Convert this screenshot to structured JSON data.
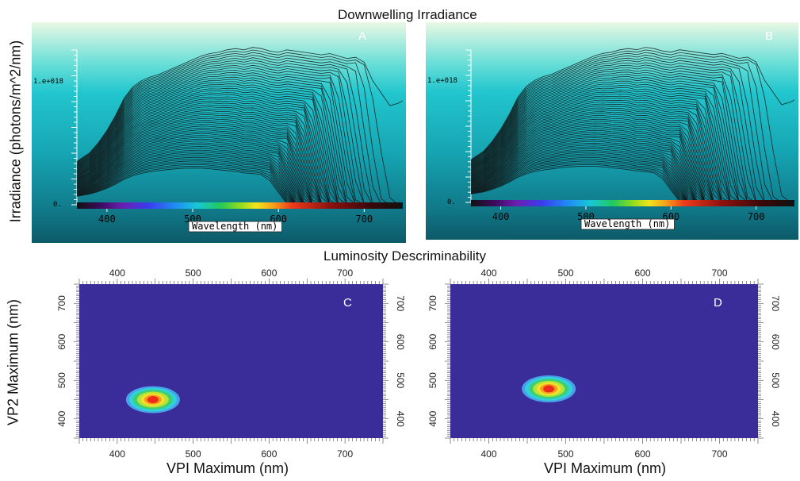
{
  "titles": {
    "top": "Downwelling Irradiance",
    "bottom": "Luminosity Descriminability"
  },
  "irradiance_ylabel": "Irradiance (photons/m^2/nm)",
  "colors": {
    "panel_bg_top": "#e8f7e6",
    "panel_bg_mid": "#22c5cd",
    "panel_bg_bottom": "#0f5e6c",
    "curve": "#111111",
    "heatmap_bg": "#3a2d9a"
  },
  "chart_data": [
    {
      "type": "line",
      "panel": "A",
      "xlabel": "Wavelength (nm)",
      "x_ticks": [
        "400",
        "500",
        "600",
        "700"
      ],
      "y_ticks": [
        "0.",
        "1.e+018"
      ],
      "xlim": [
        365,
        745
      ],
      "top_curve": {
        "x": [
          365,
          380,
          390,
          400,
          410,
          420,
          430,
          440,
          450,
          460,
          470,
          480,
          490,
          500,
          510,
          520,
          530,
          540,
          550,
          560,
          570,
          580,
          590,
          600,
          610,
          620,
          630,
          640,
          650,
          660,
          670,
          680,
          690,
          700,
          710,
          720,
          730,
          740,
          745
        ],
        "y": [
          0.35,
          0.42,
          0.5,
          0.6,
          0.72,
          0.86,
          0.95,
          1.0,
          1.03,
          1.05,
          1.08,
          1.11,
          1.14,
          1.17,
          1.2,
          1.22,
          1.23,
          1.25,
          1.26,
          1.25,
          1.27,
          1.26,
          1.24,
          1.23,
          1.25,
          1.24,
          1.23,
          1.22,
          1.21,
          1.22,
          1.2,
          1.18,
          1.19,
          1.15,
          1.0,
          0.9,
          0.8,
          0.82,
          0.84
        ]
      },
      "curve_count": 60
    },
    {
      "type": "line",
      "panel": "B",
      "xlabel": "Wavelength (nm)",
      "x_ticks": [
        "400",
        "500",
        "600",
        "700"
      ],
      "y_ticks": [
        "0.",
        "1.e+018"
      ],
      "xlim": [
        365,
        745
      ],
      "top_curve": {
        "x": [
          365,
          380,
          390,
          400,
          410,
          420,
          430,
          440,
          450,
          460,
          470,
          480,
          490,
          500,
          510,
          520,
          530,
          540,
          550,
          560,
          570,
          580,
          590,
          600,
          610,
          620,
          630,
          640,
          650,
          660,
          670,
          680,
          690,
          700,
          710,
          720,
          730,
          740,
          745
        ],
        "y": [
          0.35,
          0.42,
          0.5,
          0.6,
          0.72,
          0.86,
          0.95,
          1.0,
          1.03,
          1.05,
          1.08,
          1.11,
          1.14,
          1.17,
          1.2,
          1.22,
          1.23,
          1.25,
          1.26,
          1.25,
          1.27,
          1.26,
          1.24,
          1.23,
          1.25,
          1.24,
          1.23,
          1.22,
          1.21,
          1.22,
          1.2,
          1.18,
          1.19,
          1.15,
          1.0,
          0.9,
          0.8,
          0.82,
          0.84
        ]
      },
      "curve_count": 60
    },
    {
      "type": "heatmap",
      "panel": "C",
      "xlabel": "VPI Maximum (nm)",
      "ylabel": "VP2 Maximum (nm)",
      "x_ticks": [
        "400",
        "500",
        "600",
        "700"
      ],
      "y_ticks": [
        "400",
        "500",
        "600",
        "700"
      ],
      "xlim": [
        350,
        750
      ],
      "ylim": [
        350,
        750
      ],
      "peak": {
        "x": 447,
        "y": 450
      }
    },
    {
      "type": "heatmap",
      "panel": "D",
      "xlabel": "VPI Maximum (nm)",
      "ylabel": "VP2 Maximum (nm)",
      "x_ticks": [
        "400",
        "500",
        "600",
        "700"
      ],
      "y_ticks": [
        "400",
        "500",
        "600",
        "700"
      ],
      "xlim": [
        350,
        750
      ],
      "ylim": [
        350,
        750
      ],
      "peak": {
        "x": 478,
        "y": 478
      }
    }
  ]
}
